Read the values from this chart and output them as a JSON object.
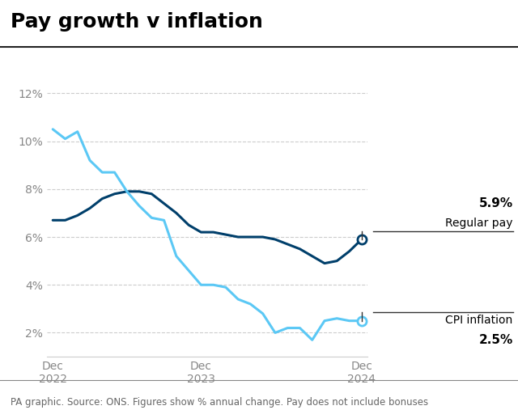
{
  "title": "Pay growth v inflation",
  "source_text": "PA graphic. Source: ONS. Figures show % annual change. Pay does not include bonuses",
  "regular_pay": {
    "x": [
      0,
      1,
      2,
      3,
      4,
      5,
      6,
      7,
      8,
      9,
      10,
      11,
      12,
      13,
      14,
      15,
      16,
      17,
      18,
      19,
      20,
      21,
      22,
      23,
      24,
      25
    ],
    "y": [
      6.7,
      6.7,
      6.9,
      7.2,
      7.6,
      7.8,
      7.9,
      7.9,
      7.8,
      7.4,
      7.0,
      6.5,
      6.2,
      6.2,
      6.1,
      6.0,
      6.0,
      6.0,
      5.9,
      5.7,
      5.5,
      5.2,
      4.9,
      5.0,
      5.4,
      5.9
    ],
    "color": "#003f6b",
    "linewidth": 2.2,
    "label": "Regular pay",
    "end_value": "5.9%"
  },
  "cpi_inflation": {
    "x": [
      0,
      1,
      2,
      3,
      4,
      5,
      6,
      7,
      8,
      9,
      10,
      11,
      12,
      13,
      14,
      15,
      16,
      17,
      18,
      19,
      20,
      21,
      22,
      23,
      24,
      25
    ],
    "y": [
      10.5,
      10.1,
      10.4,
      9.2,
      8.7,
      8.7,
      7.9,
      7.3,
      6.8,
      6.7,
      5.2,
      4.6,
      4.0,
      4.0,
      3.9,
      3.4,
      3.2,
      2.8,
      2.0,
      2.2,
      2.2,
      1.7,
      2.5,
      2.6,
      2.5,
      2.5
    ],
    "color": "#5bc8f5",
    "linewidth": 2.2,
    "label": "CPI inflation",
    "end_value": "2.5%"
  },
  "x_tick_positions": [
    0,
    12,
    25
  ],
  "x_tick_labels": [
    "Dec\n2022",
    "Dec\n2023",
    "Dec\n2024"
  ],
  "y_ticks": [
    2,
    4,
    6,
    8,
    10,
    12
  ],
  "y_tick_labels": [
    "2%",
    "4%",
    "6%",
    "8%",
    "10%",
    "12%"
  ],
  "ylim": [
    1.0,
    13.5
  ],
  "xlim": [
    -0.5,
    25.5
  ],
  "background_color": "#ffffff",
  "grid_color": "#aaaaaa",
  "title_fontsize": 18,
  "tick_fontsize": 10,
  "source_fontsize": 8.5
}
